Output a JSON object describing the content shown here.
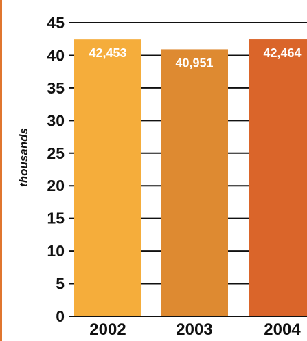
{
  "chart_data": {
    "type": "bar",
    "categories": [
      "2002",
      "2003",
      "2004"
    ],
    "values": [
      42453,
      40951,
      42464
    ],
    "value_labels": [
      "42,453",
      "40,951",
      "42,464"
    ],
    "bar_colors": [
      "#f5ad3b",
      "#de8a31",
      "#da652a"
    ],
    "title": "",
    "xlabel": "",
    "ylabel": "thousands",
    "yticks": [
      "0",
      "5",
      "10",
      "15",
      "20",
      "25",
      "30",
      "35",
      "40",
      "45"
    ],
    "ylim": [
      0,
      45
    ],
    "grid": true,
    "legend": "none"
  },
  "colors": {
    "border_accent": "#e0762f",
    "text": "#111111",
    "gridline": "#111111"
  }
}
